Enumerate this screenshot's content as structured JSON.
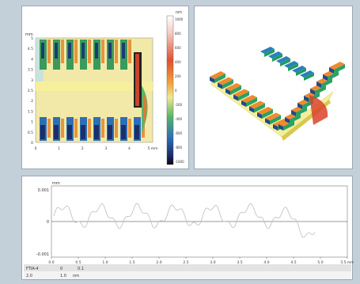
{
  "heatmap_panel": {
    "unit_top": "nm",
    "y_unit": "mm",
    "x_unit": "mm",
    "x_ticks": [
      "0",
      "1",
      "2",
      "3",
      "4",
      "5 mm"
    ],
    "y_ticks": [
      "0",
      "0.5",
      "1",
      "1.5",
      "2",
      "2.5",
      "3",
      "3.5",
      "4",
      "4.5",
      "5"
    ],
    "colorbar_ticks": [
      "1000",
      "800",
      "600",
      "400",
      "200",
      "0",
      "-200",
      "-400",
      "-600",
      "-800",
      "-1000"
    ]
  },
  "surface_panel": {
    "view": "3D surface view"
  },
  "profile_panel": {
    "y_ticks": [
      "0.001",
      "0",
      "-0.001"
    ],
    "y_unit": "mm",
    "x_ticks": [
      "0.0",
      "0.5",
      "1.0",
      "1.5",
      "2.0",
      "2.5",
      "3.0",
      "3.5",
      "4.0",
      "4.5",
      "5.0",
      "5.5 mm"
    ],
    "footer_row1": [
      "FTIA-4",
      "0",
      "0.1"
    ],
    "footer_row2": [
      "2.0",
      "1.0",
      "nm"
    ]
  },
  "colors": {
    "background": "#c4d0d9",
    "heatmap_base": "#f4eca4",
    "bar_green": "#3a9a5a",
    "bar_orange": "#e5852c",
    "bar_blue": "#2c6fb5"
  }
}
